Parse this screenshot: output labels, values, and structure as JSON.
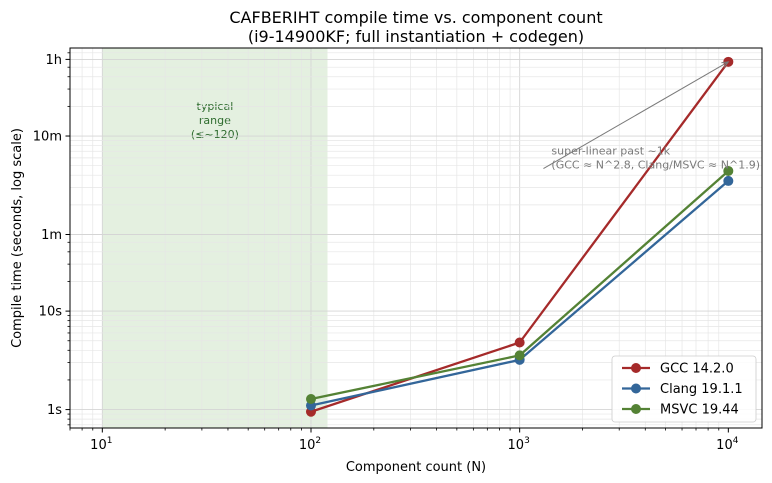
{
  "chart_data": {
    "type": "line",
    "title_line1": "CAFBERIHT compile time vs. component count",
    "title_line2": "(i9-14900KF; full instantiation + codegen)",
    "xlabel": "Component count (N)",
    "ylabel": "Compile time (seconds, log scale)",
    "x_scale": "log",
    "y_scale": "log",
    "xlim": [
      7,
      14500
    ],
    "ylim": [
      0.65,
      4700
    ],
    "grid": true,
    "x_ticks": [
      {
        "value": 10,
        "base": "10",
        "exp": "1"
      },
      {
        "value": 100,
        "base": "10",
        "exp": "2"
      },
      {
        "value": 1000,
        "base": "10",
        "exp": "3"
      },
      {
        "value": 10000,
        "base": "10",
        "exp": "4"
      }
    ],
    "y_ticks": [
      {
        "value": 1,
        "label": "1s"
      },
      {
        "value": 10,
        "label": "10s"
      },
      {
        "value": 60,
        "label": "1m"
      },
      {
        "value": 600,
        "label": "10m"
      },
      {
        "value": 3600,
        "label": "1h"
      }
    ],
    "shaded_region": {
      "x_range": [
        10,
        120
      ],
      "color": "#d8ead3",
      "label_lines": [
        "typical",
        "range",
        "(≤~120)"
      ],
      "label_color": "#2e6b2e"
    },
    "annotation": {
      "lines": [
        "super-linear past ~1k",
        "(GCC ≈ N^2.8, Clang/MSVC ≈ N^1.9)"
      ],
      "color": "#7a7a7a",
      "arrow_from": [
        1300,
        280
      ],
      "arrow_to": [
        10000,
        3400
      ]
    },
    "x": [
      100,
      1000,
      10000
    ],
    "series": [
      {
        "name": "GCC 14.2.0",
        "color": "#a52a2a",
        "values": [
          0.95,
          4.8,
          3400
        ]
      },
      {
        "name": "Clang 19.1.1",
        "color": "#336699",
        "values": [
          1.1,
          3.2,
          210
        ]
      },
      {
        "name": "MSVC 19.44",
        "color": "#548235",
        "values": [
          1.28,
          3.55,
          265
        ]
      }
    ],
    "legend_position": "lower-right"
  }
}
